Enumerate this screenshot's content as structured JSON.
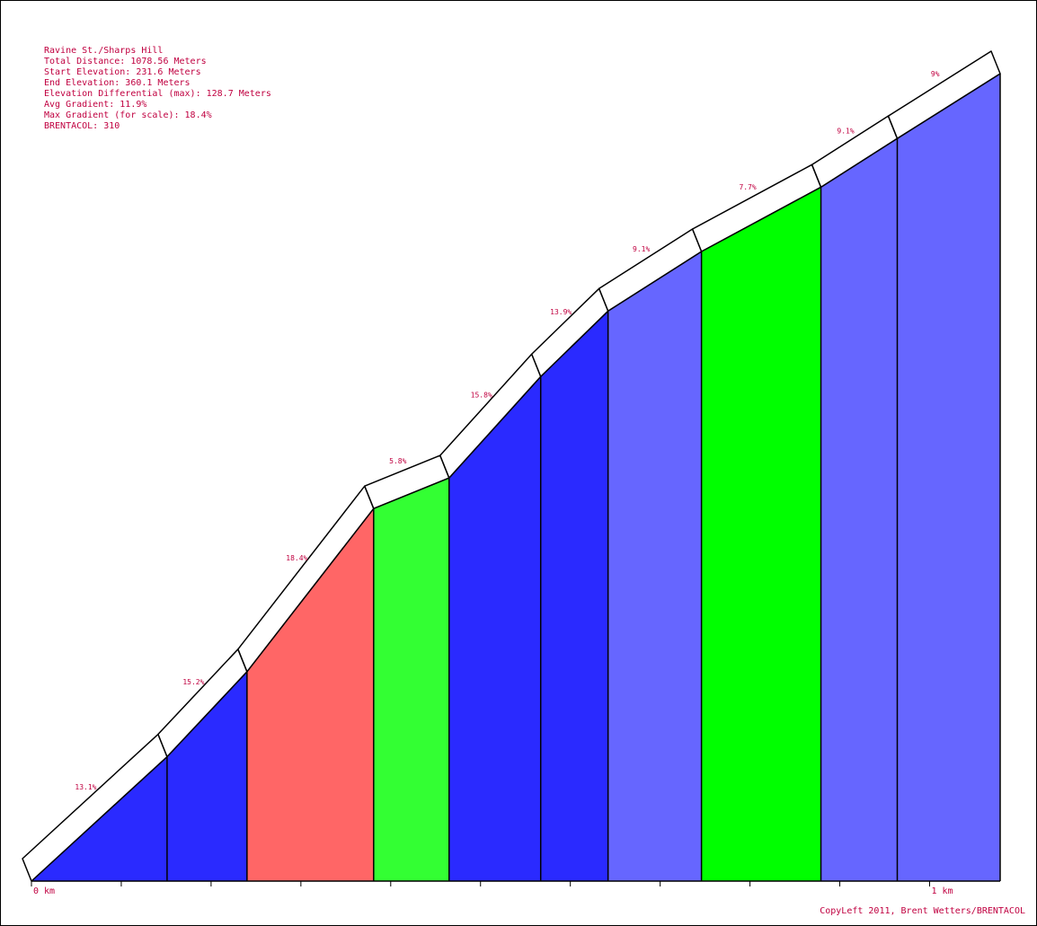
{
  "info": {
    "title": "Ravine St./Sharps Hill",
    "total_distance": "Total Distance: 1078.56 Meters",
    "start_elevation": "Start Elevation: 231.6 Meters",
    "end_elevation": "End Elevation: 360.1 Meters",
    "elevation_differential": "Elevation Differential (max): 128.7 Meters",
    "avg_gradient": "Avg Gradient: 11.9%",
    "max_gradient": "Max Gradient (for scale): 18.4%",
    "brentacol": "BRENTACOL: 310"
  },
  "credit": "CopyLeft 2011, Brent Wetters/BRENTACOL",
  "chart_data": {
    "type": "area",
    "x_unit": "km",
    "x_ticks": [
      {
        "value": 0,
        "label": "0 km"
      },
      {
        "value": 1,
        "label": "1 km"
      }
    ],
    "xlim": [
      0,
      1.07856
    ],
    "ylim": [
      231.6,
      360.1
    ],
    "segments": [
      {
        "start_km": 0.0,
        "end_km": 0.151,
        "gradient": 13.1,
        "label": "13.1%",
        "color": "#2a2aff"
      },
      {
        "start_km": 0.151,
        "end_km": 0.24,
        "gradient": 15.2,
        "label": "15.2%",
        "color": "#2a2aff"
      },
      {
        "start_km": 0.24,
        "end_km": 0.381,
        "gradient": 18.4,
        "label": "18.4%",
        "color": "#ff6666"
      },
      {
        "start_km": 0.381,
        "end_km": 0.465,
        "gradient": 5.8,
        "label": "5.8%",
        "color": "#33ff33"
      },
      {
        "start_km": 0.465,
        "end_km": 0.567,
        "gradient": 15.8,
        "label": "15.8%",
        "color": "#2a2aff"
      },
      {
        "start_km": 0.567,
        "end_km": 0.642,
        "gradient": 13.9,
        "label": "13.9%",
        "color": "#2a2aff"
      },
      {
        "start_km": 0.642,
        "end_km": 0.746,
        "gradient": 9.1,
        "label": "9.1%",
        "color": "#6666ff"
      },
      {
        "start_km": 0.746,
        "end_km": 0.879,
        "gradient": 7.7,
        "label": "7.7%",
        "color": "#00ff00"
      },
      {
        "start_km": 0.879,
        "end_km": 0.964,
        "gradient": 9.1,
        "label": "9.1%",
        "color": "#6666ff"
      },
      {
        "start_km": 0.964,
        "end_km": 1.07856,
        "gradient": 9,
        "label": "9%",
        "color": "#6666ff"
      }
    ]
  }
}
